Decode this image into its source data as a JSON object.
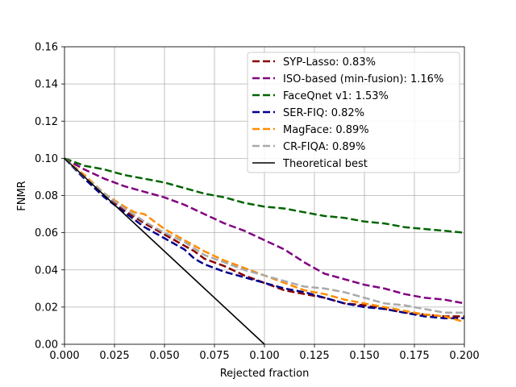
{
  "chart_data": {
    "type": "line",
    "xlabel": "Rejected fraction",
    "ylabel": "FNMR",
    "xlim": [
      0.0,
      0.2
    ],
    "ylim": [
      0.0,
      0.16
    ],
    "xticks": [
      "0.000",
      "0.025",
      "0.050",
      "0.075",
      "0.100",
      "0.125",
      "0.150",
      "0.175",
      "0.200"
    ],
    "yticks": [
      "0.00",
      "0.02",
      "0.04",
      "0.06",
      "0.08",
      "0.10",
      "0.12",
      "0.14",
      "0.16"
    ],
    "grid": true,
    "legend_position": "top-right",
    "series": [
      {
        "name": "SYP-Lasso: 0.83%",
        "color": "#8b0000",
        "style": "dashed",
        "x": [
          0.0,
          0.01,
          0.02,
          0.03,
          0.04,
          0.05,
          0.06,
          0.065,
          0.07,
          0.08,
          0.09,
          0.1,
          0.11,
          0.12,
          0.13,
          0.14,
          0.15,
          0.16,
          0.17,
          0.18,
          0.19,
          0.2
        ],
        "y": [
          0.1,
          0.09,
          0.081,
          0.072,
          0.065,
          0.059,
          0.053,
          0.05,
          0.046,
          0.042,
          0.037,
          0.033,
          0.029,
          0.027,
          0.025,
          0.022,
          0.021,
          0.019,
          0.017,
          0.016,
          0.015,
          0.015
        ]
      },
      {
        "name": "ISO-based (min-fusion): 1.16%",
        "color": "#800080",
        "style": "dashed",
        "x": [
          0.0,
          0.01,
          0.02,
          0.03,
          0.04,
          0.05,
          0.06,
          0.07,
          0.08,
          0.09,
          0.1,
          0.11,
          0.12,
          0.13,
          0.14,
          0.15,
          0.16,
          0.17,
          0.18,
          0.19,
          0.2
        ],
        "y": [
          0.1,
          0.094,
          0.089,
          0.085,
          0.082,
          0.079,
          0.075,
          0.07,
          0.065,
          0.061,
          0.056,
          0.051,
          0.044,
          0.038,
          0.035,
          0.032,
          0.03,
          0.027,
          0.025,
          0.024,
          0.022
        ]
      },
      {
        "name": "FaceQnet v1: 1.53%",
        "color": "#006400",
        "style": "dashed",
        "x": [
          0.0,
          0.01,
          0.02,
          0.03,
          0.04,
          0.05,
          0.06,
          0.07,
          0.08,
          0.09,
          0.1,
          0.11,
          0.12,
          0.13,
          0.14,
          0.15,
          0.16,
          0.17,
          0.18,
          0.19,
          0.2
        ],
        "y": [
          0.1,
          0.096,
          0.094,
          0.091,
          0.089,
          0.087,
          0.084,
          0.081,
          0.079,
          0.076,
          0.074,
          0.073,
          0.071,
          0.069,
          0.068,
          0.066,
          0.065,
          0.063,
          0.062,
          0.061,
          0.06
        ]
      },
      {
        "name": "SER-FIQ: 0.82%",
        "color": "#00008b",
        "style": "dashed",
        "x": [
          0.0,
          0.01,
          0.02,
          0.03,
          0.04,
          0.05,
          0.06,
          0.065,
          0.07,
          0.08,
          0.09,
          0.1,
          0.11,
          0.12,
          0.13,
          0.14,
          0.15,
          0.16,
          0.17,
          0.18,
          0.19,
          0.2
        ],
        "y": [
          0.1,
          0.089,
          0.079,
          0.071,
          0.063,
          0.057,
          0.051,
          0.046,
          0.043,
          0.039,
          0.036,
          0.033,
          0.03,
          0.028,
          0.025,
          0.022,
          0.02,
          0.019,
          0.017,
          0.015,
          0.014,
          0.014
        ]
      },
      {
        "name": "MagFace: 0.89%",
        "color": "#ff8c00",
        "style": "dashed",
        "x": [
          0.0,
          0.01,
          0.02,
          0.03,
          0.035,
          0.04,
          0.05,
          0.06,
          0.07,
          0.08,
          0.09,
          0.1,
          0.11,
          0.12,
          0.13,
          0.14,
          0.15,
          0.16,
          0.17,
          0.18,
          0.19,
          0.2
        ],
        "y": [
          0.1,
          0.091,
          0.081,
          0.074,
          0.071,
          0.07,
          0.062,
          0.056,
          0.05,
          0.045,
          0.041,
          0.037,
          0.033,
          0.029,
          0.027,
          0.024,
          0.022,
          0.02,
          0.018,
          0.016,
          0.015,
          0.012
        ]
      },
      {
        "name": "CR-FIQA: 0.89%",
        "color": "#a9a9a9",
        "style": "dashed",
        "x": [
          0.0,
          0.01,
          0.02,
          0.03,
          0.04,
          0.05,
          0.06,
          0.07,
          0.08,
          0.09,
          0.1,
          0.11,
          0.12,
          0.13,
          0.14,
          0.15,
          0.16,
          0.17,
          0.18,
          0.19,
          0.2
        ],
        "y": [
          0.1,
          0.09,
          0.081,
          0.073,
          0.066,
          0.06,
          0.055,
          0.048,
          0.044,
          0.04,
          0.037,
          0.034,
          0.031,
          0.03,
          0.028,
          0.025,
          0.022,
          0.021,
          0.019,
          0.017,
          0.017
        ]
      },
      {
        "name": "Theoretical best",
        "color": "#000000",
        "style": "solid",
        "x": [
          0.0,
          0.1
        ],
        "y": [
          0.1,
          0.0
        ]
      }
    ]
  }
}
